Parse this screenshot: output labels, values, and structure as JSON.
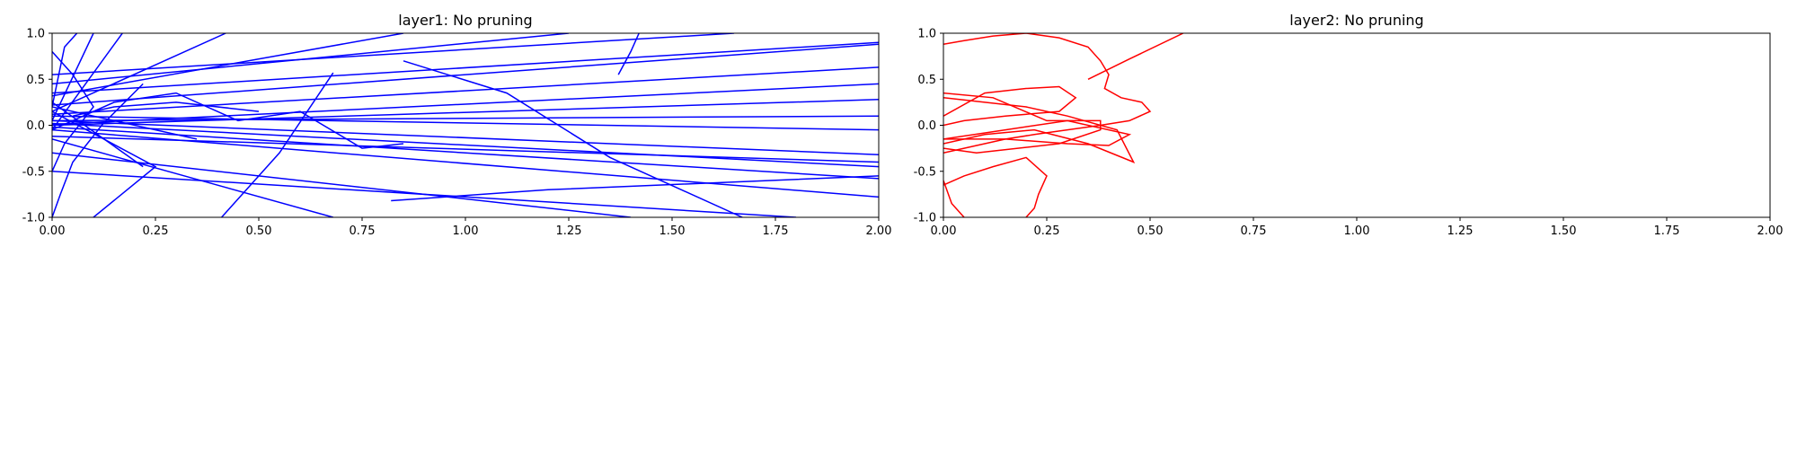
{
  "chart_data": [
    {
      "type": "line",
      "title": "layer1: No pruning",
      "xlim": [
        0,
        2
      ],
      "ylim": [
        -1,
        1
      ],
      "xticks": [
        "0.00",
        "0.25",
        "0.50",
        "0.75",
        "1.00",
        "1.25",
        "1.50",
        "1.75",
        "2.00"
      ],
      "yticks": [
        "1.0",
        "0.5",
        "0.0",
        "-0.5",
        "-1.0"
      ],
      "color": "#0000ff",
      "grid": false,
      "series": [
        {
          "x": [
            0,
            2.0
          ],
          "y": [
            0.02,
            -0.45
          ]
        },
        {
          "x": [
            0,
            2.0
          ],
          "y": [
            0.01,
            0.45
          ]
        },
        {
          "x": [
            0,
            2.0
          ],
          "y": [
            0.05,
            -0.32
          ]
        },
        {
          "x": [
            0,
            2.0
          ],
          "y": [
            -0.02,
            -0.58
          ]
        },
        {
          "x": [
            0,
            2.0
          ],
          "y": [
            0.12,
            0.63
          ]
        },
        {
          "x": [
            0,
            2.0
          ],
          "y": [
            0.22,
            0.88
          ]
        },
        {
          "x": [
            0,
            2.0
          ],
          "y": [
            0.0,
            0.28
          ]
        },
        {
          "x": [
            0,
            2.0
          ],
          "y": [
            -0.05,
            -0.78
          ]
        },
        {
          "x": [
            0,
            2.0
          ],
          "y": [
            0.1,
            -0.05
          ]
        },
        {
          "x": [
            0,
            2.0
          ],
          "y": [
            0.35,
            0.9
          ]
        },
        {
          "x": [
            0,
            2.0
          ],
          "y": [
            -0.12,
            -0.4
          ]
        },
        {
          "x": [
            0,
            2.0
          ],
          "y": [
            0.05,
            0.1
          ]
        },
        {
          "x": [
            0,
            1.8
          ],
          "y": [
            -0.5,
            -1.0
          ]
        },
        {
          "x": [
            0,
            1.4
          ],
          "y": [
            -0.3,
            -1.0
          ]
        },
        {
          "x": [
            0,
            1.65
          ],
          "y": [
            0.55,
            1.0
          ]
        },
        {
          "x": [
            0,
            1.25
          ],
          "y": [
            0.45,
            1.0
          ]
        },
        {
          "x": [
            0,
            0.85
          ],
          "y": [
            0.32,
            1.0
          ]
        },
        {
          "x": [
            0,
            0.42
          ],
          "y": [
            0.15,
            1.0
          ]
        },
        {
          "x": [
            0,
            0.17
          ],
          "y": [
            -0.05,
            1.0
          ]
        },
        {
          "x": [
            0,
            0.1
          ],
          "y": [
            0.05,
            1.0
          ]
        },
        {
          "x": [
            0,
            0.68
          ],
          "y": [
            -0.15,
            -1.0
          ]
        },
        {
          "x": [
            0,
            0.35
          ],
          "y": [
            0.2,
            -0.15
          ]
        },
        {
          "x": [
            0,
            0.22
          ],
          "y": [
            0.25,
            -0.45
          ]
        },
        {
          "x": [
            0.1,
            0.25,
            0.0
          ],
          "y": [
            -1.0,
            -0.45,
            0.15
          ]
        },
        {
          "x": [
            0.0,
            0.02,
            0.05,
            0.12,
            0.22
          ],
          "y": [
            -1.0,
            -0.75,
            -0.4,
            0.0,
            0.45
          ]
        },
        {
          "x": [
            0.41,
            0.55,
            0.68
          ],
          "y": [
            -1.0,
            -0.3,
            0.57
          ]
        },
        {
          "x": [
            0.0,
            0.05,
            0.1,
            0.03,
            0.0
          ],
          "y": [
            0.8,
            0.55,
            0.2,
            -0.2,
            -0.5
          ]
        },
        {
          "x": [
            0.85,
            1.1,
            1.35,
            1.67
          ],
          "y": [
            0.7,
            0.35,
            -0.35,
            -1.0
          ]
        },
        {
          "x": [
            1.37,
            1.4,
            1.42
          ],
          "y": [
            0.55,
            0.8,
            1.0
          ]
        },
        {
          "x": [
            0.82,
            1.2,
            2.0
          ],
          "y": [
            -0.82,
            -0.7,
            -0.55
          ]
        },
        {
          "x": [
            0.0,
            0.03,
            0.06
          ],
          "y": [
            0.2,
            0.85,
            1.0
          ]
        },
        {
          "x": [
            0.05,
            0.15,
            0.3,
            0.5
          ],
          "y": [
            0.1,
            0.2,
            0.25,
            0.15
          ]
        },
        {
          "x": [
            0.0,
            0.15,
            0.3,
            0.45,
            0.6,
            0.75,
            0.85
          ],
          "y": [
            -0.05,
            0.25,
            0.35,
            0.05,
            0.15,
            -0.25,
            -0.2
          ]
        }
      ]
    },
    {
      "type": "line",
      "title": "layer2: No pruning",
      "xlim": [
        0,
        2
      ],
      "ylim": [
        -1,
        1
      ],
      "xticks": [
        "0.00",
        "0.25",
        "0.50",
        "0.75",
        "1.00",
        "1.25",
        "1.50",
        "1.75",
        "2.00"
      ],
      "yticks": [
        "1.0",
        "0.5",
        "0.0",
        "-0.5",
        "-1.0"
      ],
      "color": "#ff0000",
      "grid": false,
      "series": [
        {
          "x": [
            0.0,
            0.05,
            0.12,
            0.2,
            0.28,
            0.35,
            0.38,
            0.4,
            0.39,
            0.43,
            0.48,
            0.5,
            0.45,
            0.38,
            0.3,
            0.22,
            0.15,
            0.1,
            0.05,
            0.0
          ],
          "y": [
            0.88,
            0.92,
            0.97,
            1.0,
            0.95,
            0.85,
            0.7,
            0.55,
            0.4,
            0.3,
            0.25,
            0.15,
            0.05,
            0.0,
            -0.05,
            -0.1,
            -0.15,
            -0.2,
            -0.25,
            -0.3
          ]
        },
        {
          "x": [
            0.35,
            0.45,
            0.58
          ],
          "y": [
            0.5,
            0.72,
            1.0
          ]
        },
        {
          "x": [
            0.0,
            0.1,
            0.2,
            0.28,
            0.32,
            0.28,
            0.15,
            0.05,
            0.0
          ],
          "y": [
            0.1,
            0.35,
            0.4,
            0.42,
            0.3,
            0.15,
            0.1,
            0.05,
            0.0
          ]
        },
        {
          "x": [
            0.0,
            0.12,
            0.25,
            0.38,
            0.38,
            0.28,
            0.18,
            0.08,
            0.0
          ],
          "y": [
            0.35,
            0.3,
            0.05,
            0.05,
            -0.05,
            -0.2,
            -0.25,
            -0.3,
            -0.25
          ]
        },
        {
          "x": [
            0.0,
            0.15,
            0.3,
            0.45,
            0.4,
            0.3,
            0.15,
            0.0
          ],
          "y": [
            -0.15,
            -0.05,
            0.05,
            -0.1,
            -0.22,
            -0.2,
            -0.15,
            -0.15
          ]
        },
        {
          "x": [
            0.0,
            0.1,
            0.2,
            0.3,
            0.42,
            0.46,
            0.35,
            0.22,
            0.1,
            0.0
          ],
          "y": [
            0.3,
            0.25,
            0.2,
            0.1,
            -0.05,
            -0.4,
            -0.2,
            -0.05,
            -0.1,
            -0.2
          ]
        },
        {
          "x": [
            0.0,
            0.05,
            0.12,
            0.2,
            0.25,
            0.23,
            0.22,
            0.2
          ],
          "y": [
            -0.65,
            -0.55,
            -0.45,
            -0.35,
            -0.55,
            -0.75,
            -0.9,
            -1.0
          ]
        },
        {
          "x": [
            0.0,
            0.02,
            0.05
          ],
          "y": [
            -0.6,
            -0.85,
            -1.0
          ]
        }
      ]
    }
  ]
}
